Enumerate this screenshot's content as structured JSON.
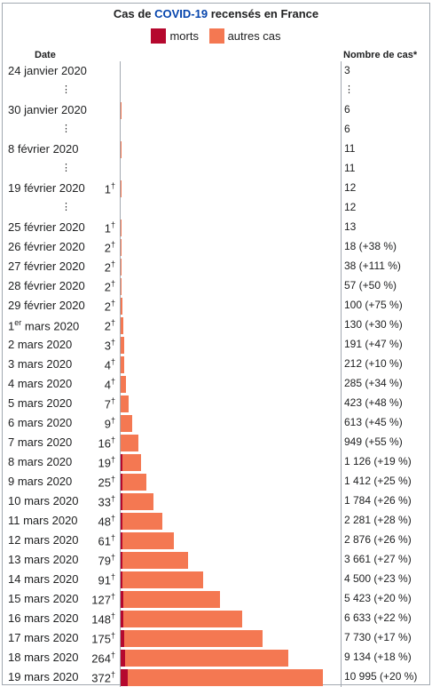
{
  "title": {
    "prefix": "Cas de ",
    "link": "COVID-19",
    "suffix": " recensés en France"
  },
  "legend": [
    {
      "label": "morts",
      "color": "#b5082e"
    },
    {
      "label": "autres cas",
      "color": "#f47852"
    }
  ],
  "headers": {
    "date": "Date",
    "cases": "Nombre de cas*"
  },
  "chart_data": {
    "type": "bar",
    "orientation": "horizontal",
    "stacked": true,
    "xmax": 11000,
    "series_names": [
      "morts",
      "autres cas"
    ],
    "colors": {
      "deaths": "#b5082e",
      "other": "#f47852"
    },
    "rows": [
      {
        "date": "24 janvier 2020",
        "deaths": null,
        "total": 3,
        "cases_label": "3"
      },
      {
        "date": "⋮",
        "dots": true,
        "cases_label": "⋮"
      },
      {
        "date": "30 janvier 2020",
        "deaths": null,
        "total": 6,
        "cases_label": "6"
      },
      {
        "date": "⋮",
        "dots": true,
        "cases_label": "6"
      },
      {
        "date": "8 février 2020",
        "deaths": null,
        "total": 11,
        "cases_label": "11"
      },
      {
        "date": "⋮",
        "dots": true,
        "cases_label": "11"
      },
      {
        "date": "19 février 2020",
        "deaths": 1,
        "total": 12,
        "cases_label": "12"
      },
      {
        "date": "⋮",
        "dots": true,
        "cases_label": "12"
      },
      {
        "date": "25 février 2020",
        "deaths": 1,
        "total": 13,
        "cases_label": "13"
      },
      {
        "date": "26 février 2020",
        "deaths": 2,
        "total": 18,
        "cases_label": "18 (+38 %)"
      },
      {
        "date": "27 février 2020",
        "deaths": 2,
        "total": 38,
        "cases_label": "38 (+111 %)"
      },
      {
        "date": "28 février 2020",
        "deaths": 2,
        "total": 57,
        "cases_label": "57 (+50 %)"
      },
      {
        "date": "29 février 2020",
        "deaths": 2,
        "total": 100,
        "cases_label": "100 (+75 %)"
      },
      {
        "date": "1",
        "date_sup": "er",
        "date_rest": " mars 2020",
        "deaths": 2,
        "total": 130,
        "cases_label": "130 (+30 %)"
      },
      {
        "date": "2 mars 2020",
        "deaths": 3,
        "total": 191,
        "cases_label": "191 (+47 %)"
      },
      {
        "date": "3 mars 2020",
        "deaths": 4,
        "total": 212,
        "cases_label": "212 (+10 %)"
      },
      {
        "date": "4 mars 2020",
        "deaths": 4,
        "total": 285,
        "cases_label": "285 (+34 %)"
      },
      {
        "date": "5 mars 2020",
        "deaths": 7,
        "total": 423,
        "cases_label": "423 (+48 %)"
      },
      {
        "date": "6 mars 2020",
        "deaths": 9,
        "total": 613,
        "cases_label": "613 (+45 %)"
      },
      {
        "date": "7 mars 2020",
        "deaths": 16,
        "total": 949,
        "cases_label": "949 (+55 %)"
      },
      {
        "date": "8 mars 2020",
        "deaths": 19,
        "total": 1126,
        "cases_label": "1 126 (+19 %)"
      },
      {
        "date": "9 mars 2020",
        "deaths": 25,
        "total": 1412,
        "cases_label": "1 412 (+25 %)"
      },
      {
        "date": "10 mars 2020",
        "deaths": 33,
        "total": 1784,
        "cases_label": "1 784 (+26 %)"
      },
      {
        "date": "11 mars 2020",
        "deaths": 48,
        "total": 2281,
        "cases_label": "2 281 (+28 %)"
      },
      {
        "date": "12 mars 2020",
        "deaths": 61,
        "total": 2876,
        "cases_label": "2 876 (+26 %)"
      },
      {
        "date": "13 mars 2020",
        "deaths": 79,
        "total": 3661,
        "cases_label": "3 661 (+27 %)"
      },
      {
        "date": "14 mars 2020",
        "deaths": 91,
        "total": 4500,
        "cases_label": "4 500 (+23 %)"
      },
      {
        "date": "15 mars 2020",
        "deaths": 127,
        "total": 5423,
        "cases_label": "5 423 (+20 %)"
      },
      {
        "date": "16 mars 2020",
        "deaths": 148,
        "total": 6633,
        "cases_label": "6 633 (+22 %)"
      },
      {
        "date": "17 mars 2020",
        "deaths": 175,
        "total": 7730,
        "cases_label": "7 730 (+17 %)"
      },
      {
        "date": "18 mars 2020",
        "deaths": 264,
        "total": 9134,
        "cases_label": "9 134 (+18 %)"
      },
      {
        "date": "19 mars 2020",
        "deaths": 372,
        "total": 10995,
        "cases_label": "10 995 (+20 %)"
      }
    ]
  }
}
